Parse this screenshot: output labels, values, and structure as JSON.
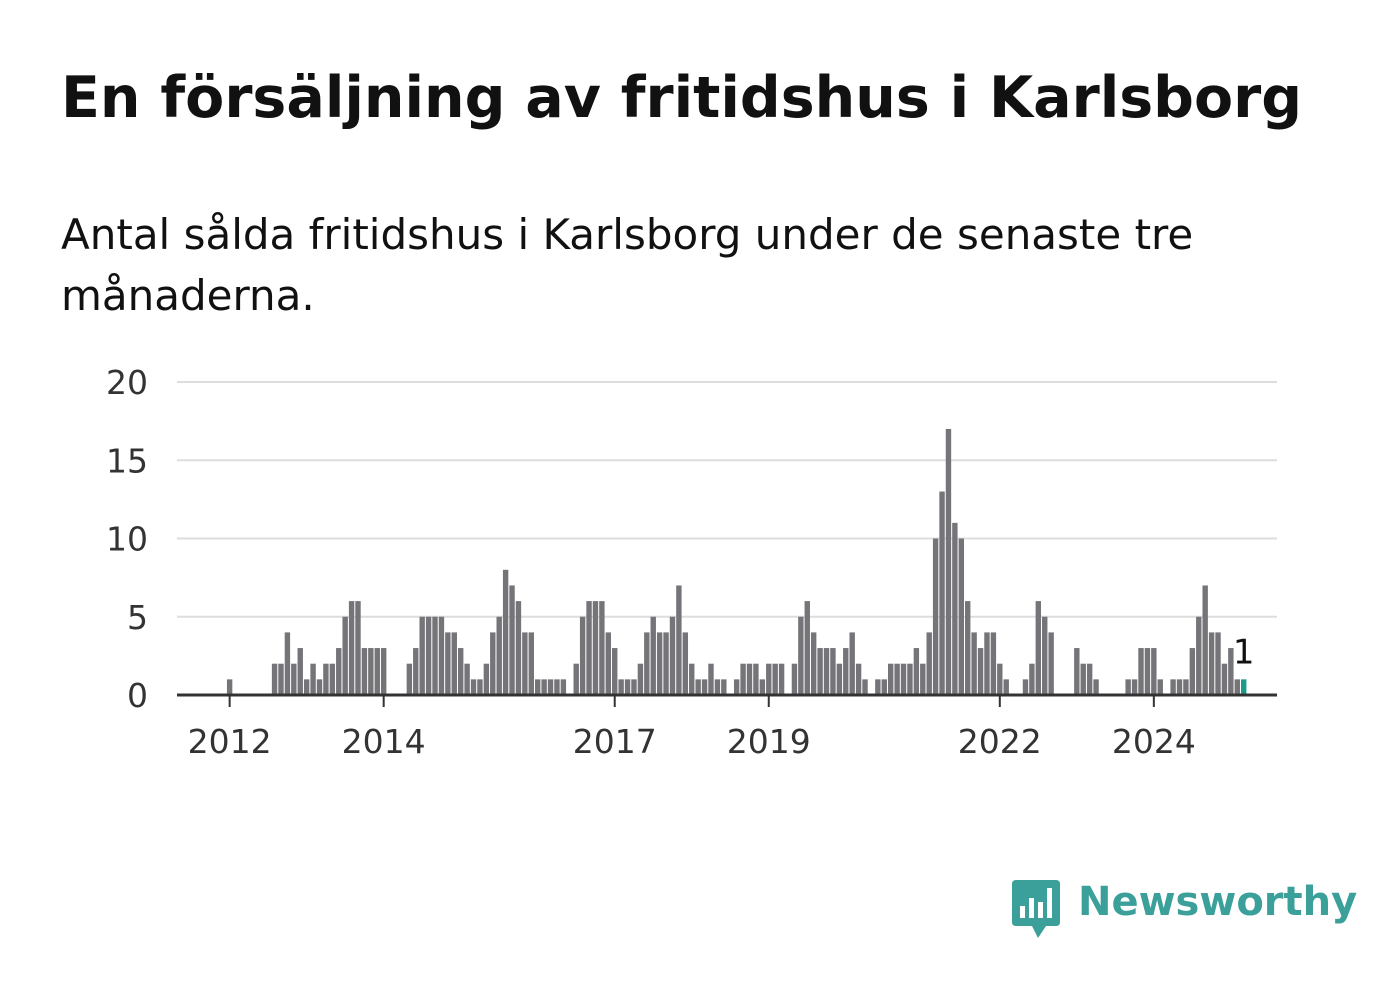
{
  "title": "En försäljning av fritidshus i Karlsborg",
  "subtitle": "Antal sålda fritidshus i Karlsborg under de senaste tre månaderna.",
  "brand": {
    "name": "Newsworthy",
    "icon": "newsworthy-chart-bubble-icon",
    "color": "#3b9f9a"
  },
  "colors": {
    "bar": "#757478",
    "highlight": "#1a9a8a",
    "grid": "#dddddd",
    "axis": "#333333"
  },
  "chart_data": {
    "type": "bar",
    "title": "En försäljning av fritidshus i Karlsborg",
    "subtitle": "Antal sålda fritidshus i Karlsborg under de senaste tre månaderna.",
    "xlabel": "",
    "ylabel": "",
    "ylim": [
      0,
      20
    ],
    "yticks": [
      0,
      5,
      10,
      15,
      20
    ],
    "grid": true,
    "x_start": "2011-05",
    "x_end": "2025-01",
    "xticks": [
      "2012",
      "2014",
      "2017",
      "2019",
      "2022",
      "2024"
    ],
    "highlight_last": true,
    "last_label": "1",
    "values": [
      0,
      0,
      0,
      0,
      0,
      0,
      0,
      0,
      1,
      0,
      0,
      0,
      0,
      0,
      0,
      2,
      2,
      4,
      2,
      3,
      1,
      2,
      1,
      2,
      2,
      3,
      5,
      6,
      6,
      3,
      3,
      3,
      3,
      0,
      0,
      0,
      2,
      3,
      5,
      5,
      5,
      5,
      4,
      4,
      3,
      2,
      1,
      1,
      2,
      4,
      5,
      8,
      7,
      6,
      4,
      4,
      1,
      1,
      1,
      1,
      1,
      0,
      2,
      5,
      6,
      6,
      6,
      4,
      3,
      1,
      1,
      1,
      2,
      4,
      5,
      4,
      4,
      5,
      7,
      4,
      2,
      1,
      1,
      2,
      1,
      1,
      0,
      1,
      2,
      2,
      2,
      1,
      2,
      2,
      2,
      0,
      2,
      5,
      6,
      4,
      3,
      3,
      3,
      2,
      3,
      4,
      2,
      1,
      0,
      1,
      1,
      2,
      2,
      2,
      2,
      3,
      2,
      4,
      10,
      13,
      17,
      11,
      10,
      6,
      4,
      3,
      4,
      4,
      2,
      1,
      0,
      0,
      1,
      2,
      6,
      5,
      4,
      0,
      0,
      0,
      3,
      2,
      2,
      1,
      0,
      0,
      0,
      0,
      1,
      1,
      3,
      3,
      3,
      1,
      0,
      1,
      1,
      1,
      3,
      5,
      7,
      4,
      4,
      2,
      3,
      1,
      1
    ]
  }
}
